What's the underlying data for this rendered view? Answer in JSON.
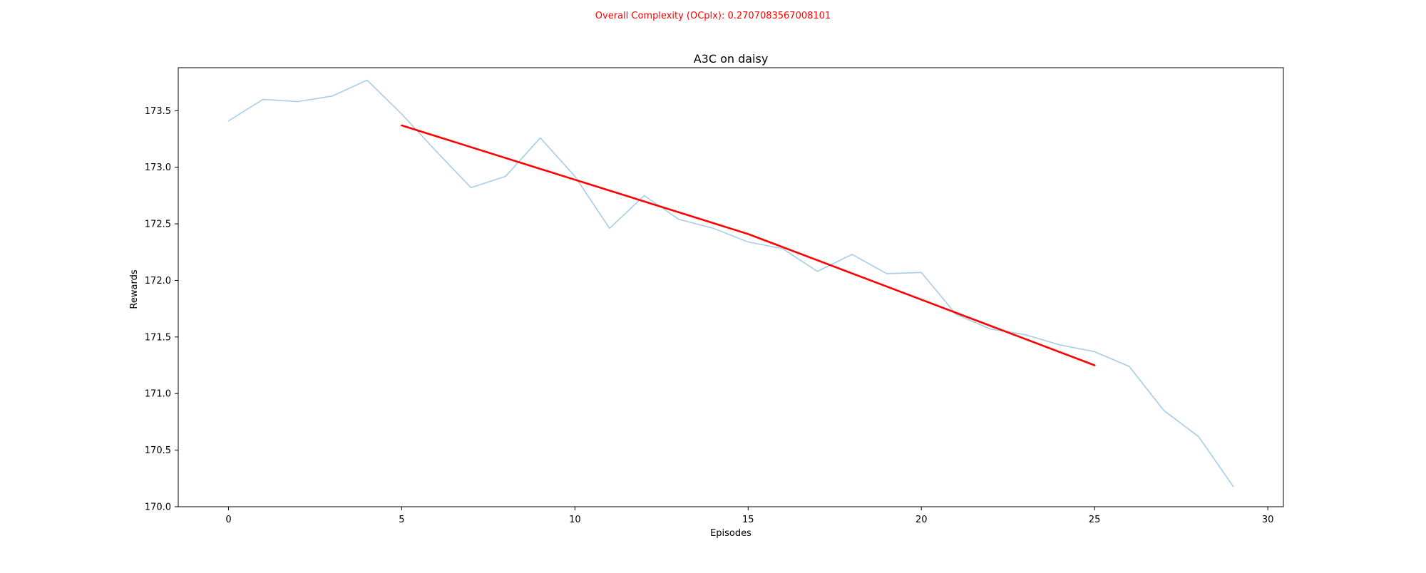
{
  "suptitle": "Overall Complexity (OCplx): 0.2707083567008101",
  "colors": {
    "suptitle": "#ff0000",
    "raw_series": "#a6cde8",
    "trend_series": "#ff0000",
    "axes": "#000000",
    "background": "#ffffff"
  },
  "chart_data": {
    "type": "line",
    "title": "A3C on daisy",
    "xlabel": "Episodes",
    "ylabel": "Rewards",
    "xlim": [
      -1.45,
      30.45
    ],
    "ylim": [
      170.0,
      173.88
    ],
    "xticks": [
      0,
      5,
      10,
      15,
      20,
      25,
      30
    ],
    "xtick_labels": [
      "0",
      "5",
      "10",
      "15",
      "20",
      "25",
      "30"
    ],
    "yticks": [
      170.0,
      170.5,
      171.0,
      171.5,
      172.0,
      172.5,
      173.0,
      173.5
    ],
    "ytick_labels": [
      "170.0",
      "170.5",
      "171.0",
      "171.5",
      "172.0",
      "172.5",
      "173.0",
      "173.5"
    ],
    "grid": false,
    "series": [
      {
        "x": [
          0,
          1,
          2,
          3,
          4,
          5,
          6,
          7,
          8,
          9,
          10,
          11,
          12,
          13,
          14,
          15,
          16,
          17,
          18,
          19,
          20,
          21,
          22,
          23,
          24,
          25,
          26,
          27,
          28,
          29
        ],
        "values": [
          173.41,
          173.6,
          173.58,
          173.63,
          173.77,
          173.47,
          173.14,
          172.82,
          172.92,
          173.26,
          172.92,
          172.46,
          172.75,
          172.54,
          172.46,
          172.34,
          172.28,
          172.08,
          172.23,
          172.06,
          172.07,
          171.7,
          171.57,
          171.52,
          171.43,
          171.37,
          171.24,
          170.85,
          170.62,
          170.18
        ]
      },
      {
        "x": [
          5,
          10,
          15,
          20,
          25
        ],
        "values": [
          173.37,
          172.89,
          172.41,
          171.83,
          171.25
        ]
      }
    ]
  }
}
